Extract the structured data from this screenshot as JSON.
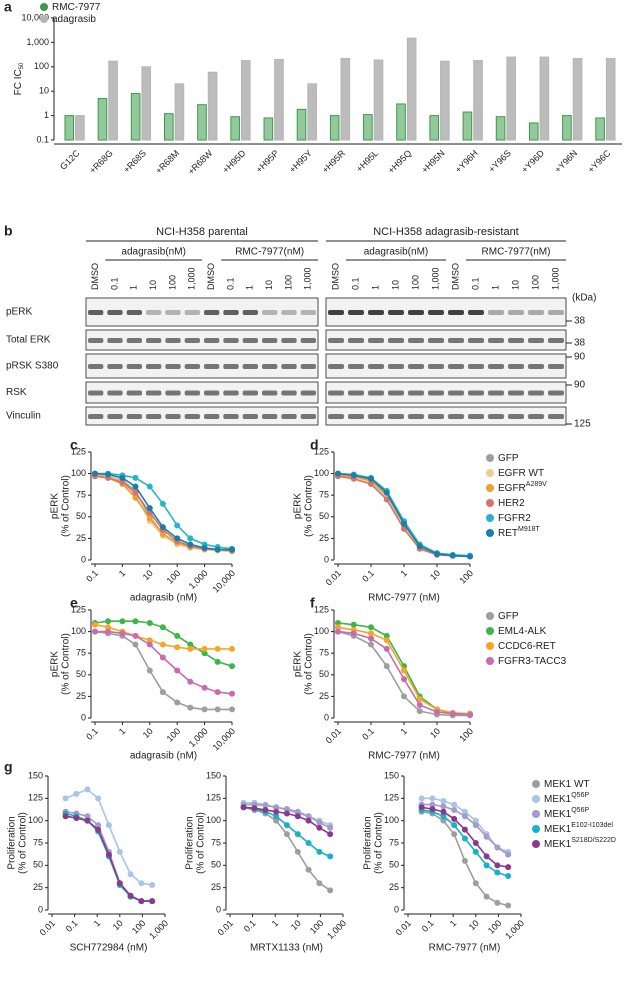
{
  "chart_data": [
    {
      "type": "bar",
      "panel": "a",
      "ylabel": "FC IC",
      "ylabel_sub": "50",
      "yscale": "log",
      "legend": "top-left",
      "categories": [
        "G12C",
        "+R68G",
        "+R68S",
        "+R68M",
        "+R68W",
        "+H95D",
        "+H95P",
        "+H95Y",
        "+H95R",
        "+H95L",
        "+H95Q",
        "+H95N",
        "+Y96H",
        "+Y96S",
        "+Y96D",
        "+Y96N",
        "+Y96C"
      ],
      "series": [
        {
          "name": "RMC-7977",
          "color": "#3a9a4a",
          "values": [
            1,
            5,
            8,
            1.2,
            2.8,
            0.9,
            0.8,
            1.8,
            1,
            1.1,
            3,
            1,
            1.4,
            0.9,
            0.5,
            1,
            0.8
          ]
        },
        {
          "name": "adagrasib",
          "color": "#b5b5b5",
          "values": [
            1,
            170,
            100,
            20,
            60,
            180,
            200,
            20,
            220,
            190,
            1500,
            170,
            180,
            250,
            250,
            220,
            220
          ]
        }
      ],
      "ylim": [
        0.1,
        10000
      ],
      "yticks": [
        0.1,
        1,
        10,
        100,
        {
          "value": 1000,
          "label": "1,000"
        },
        {
          "value": 10000,
          "label": "10,000"
        }
      ]
    },
    {
      "type": "line",
      "panel": "c",
      "ylabel": [
        "pERK",
        "(% of Control)"
      ],
      "xlabel": "adagrasib (nM)",
      "xscale": "log",
      "x": [
        0.1,
        0.3,
        1,
        3,
        10,
        30,
        100,
        300,
        1000,
        3000,
        10000
      ],
      "series": [
        {
          "color": "#9e9e9e",
          "values": [
            100,
            97,
            92,
            80,
            50,
            30,
            20,
            15,
            12,
            11,
            10
          ]
        },
        {
          "color": "#f5c98a",
          "values": [
            100,
            98,
            90,
            75,
            45,
            28,
            18,
            14,
            12,
            11,
            10
          ]
        },
        {
          "color": "#f0a030",
          "values": [
            98,
            95,
            88,
            72,
            48,
            30,
            20,
            15,
            13,
            12,
            11
          ]
        },
        {
          "color": "#d9736a",
          "values": [
            97,
            95,
            90,
            78,
            55,
            35,
            22,
            16,
            13,
            12,
            11
          ]
        },
        {
          "color": "#26b5c8",
          "values": [
            100,
            100,
            98,
            95,
            85,
            65,
            40,
            25,
            18,
            15,
            13
          ]
        },
        {
          "color": "#1a7fa8",
          "values": [
            100,
            99,
            95,
            85,
            60,
            38,
            25,
            18,
            14,
            12,
            12
          ]
        }
      ],
      "xlim": [
        0.1,
        10000
      ],
      "xticks": [
        0.1,
        1,
        10,
        100,
        {
          "value": 1000,
          "label": "1,000"
        },
        {
          "value": 10000,
          "label": "10,000"
        }
      ],
      "ylim": [
        0,
        125
      ],
      "yticks": [
        0,
        25,
        50,
        75,
        100,
        125
      ]
    },
    {
      "type": "line",
      "panel": "d",
      "ylabel": [
        "pERK",
        "(% of Control)"
      ],
      "xlabel": "RMC-7977 (nM)",
      "xscale": "log",
      "legend": "right",
      "x": [
        0.01,
        0.03,
        0.1,
        0.3,
        1,
        3,
        10,
        30,
        100
      ],
      "series": [
        {
          "name": "GFP",
          "color": "#9e9e9e",
          "values": [
            100,
            98,
            92,
            75,
            40,
            15,
            7,
            5,
            4
          ]
        },
        {
          "name": "EGFR WT",
          "color": "#f5c98a",
          "values": [
            100,
            97,
            90,
            72,
            38,
            14,
            7,
            5,
            4
          ]
        },
        {
          "name": "EGFR",
          "name_sup": "A289V",
          "color": "#f0a030",
          "values": [
            98,
            96,
            92,
            78,
            42,
            16,
            8,
            5,
            4
          ]
        },
        {
          "name": "HER2",
          "color": "#d9736a",
          "values": [
            97,
            94,
            88,
            70,
            36,
            13,
            6,
            5,
            4
          ]
        },
        {
          "name": "FGFR2",
          "color": "#26b5c8",
          "values": [
            100,
            99,
            95,
            80,
            45,
            18,
            8,
            6,
            5
          ]
        },
        {
          "name": "RET",
          "name_sup": "M918T",
          "color": "#1a7fa8",
          "values": [
            100,
            98,
            94,
            78,
            42,
            16,
            7,
            5,
            4
          ]
        }
      ],
      "xlim": [
        0.01,
        100
      ],
      "xticks": [
        0.01,
        0.1,
        1,
        10,
        100
      ],
      "ylim": [
        0,
        125
      ],
      "yticks": [
        0,
        25,
        50,
        75,
        100,
        125
      ]
    },
    {
      "type": "line",
      "panel": "e",
      "ylabel": [
        "pERK",
        "(% of Control)"
      ],
      "xlabel": "adagrasib (nM)",
      "xscale": "log",
      "x": [
        0.1,
        0.3,
        1,
        3,
        10,
        30,
        100,
        300,
        1000,
        3000,
        10000
      ],
      "series": [
        {
          "color": "#9e9e9e",
          "values": [
            100,
            98,
            95,
            85,
            55,
            30,
            18,
            12,
            10,
            10,
            10
          ]
        },
        {
          "color": "#3cb54a",
          "values": [
            110,
            112,
            112,
            112,
            110,
            105,
            95,
            85,
            75,
            65,
            60
          ]
        },
        {
          "color": "#f5a623",
          "values": [
            108,
            105,
            100,
            95,
            90,
            85,
            82,
            80,
            80,
            80,
            80
          ]
        },
        {
          "color": "#c86bb0",
          "values": [
            100,
            100,
            98,
            95,
            85,
            70,
            55,
            42,
            35,
            30,
            28
          ]
        }
      ],
      "xlim": [
        0.1,
        10000
      ],
      "xticks": [
        0.1,
        1,
        10,
        100,
        {
          "value": 1000,
          "label": "1,000"
        },
        {
          "value": 10000,
          "label": "10,000"
        }
      ],
      "ylim": [
        0,
        125
      ],
      "yticks": [
        0,
        25,
        50,
        75,
        100,
        125
      ]
    },
    {
      "type": "line",
      "panel": "f",
      "ylabel": [
        "pERK",
        "(% of Control)"
      ],
      "xlabel": "RMC-7977 (nM)",
      "xscale": "log",
      "legend": "right",
      "x": [
        0.01,
        0.03,
        0.1,
        0.3,
        1,
        3,
        10,
        30,
        100
      ],
      "series": [
        {
          "name": "GFP",
          "color": "#9e9e9e",
          "values": [
            100,
            95,
            85,
            60,
            25,
            8,
            4,
            3,
            3
          ]
        },
        {
          "name": "EML4-ALK",
          "color": "#3cb54a",
          "values": [
            110,
            108,
            105,
            95,
            60,
            25,
            10,
            5,
            4
          ]
        },
        {
          "name": "CCDC6-RET",
          "color": "#f5a623",
          "values": [
            105,
            102,
            98,
            90,
            55,
            22,
            10,
            6,
            5
          ]
        },
        {
          "name": "FGFR3-TACC3",
          "color": "#c86bb0",
          "values": [
            100,
            98,
            92,
            80,
            45,
            15,
            7,
            5,
            4
          ]
        }
      ],
      "xlim": [
        0.01,
        100
      ],
      "xticks": [
        0.01,
        0.1,
        1,
        10,
        100
      ],
      "ylim": [
        0,
        125
      ],
      "yticks": [
        0,
        25,
        50,
        75,
        100,
        125
      ]
    },
    {
      "type": "line",
      "panel": "g",
      "ylabel": [
        "Proliferation",
        "(% of Control)"
      ],
      "xlabel": "SCH772984 (nM)",
      "xscale": "log",
      "x": [
        0.04,
        0.12,
        0.37,
        1.1,
        3.3,
        10,
        30,
        90,
        270
      ],
      "series": [
        {
          "color": "#9e9e9e",
          "values": [
            105,
            103,
            100,
            90,
            60,
            30,
            15,
            10,
            10
          ]
        },
        {
          "color": "#a9c4e6",
          "values": [
            125,
            130,
            135,
            125,
            95,
            65,
            40,
            30,
            28
          ]
        },
        {
          "color": "#a39bc9",
          "values": [
            110,
            108,
            105,
            95,
            65,
            30,
            15,
            10,
            10
          ]
        },
        {
          "color": "#1ab0c8",
          "values": [
            108,
            105,
            100,
            88,
            60,
            28,
            15,
            10,
            10
          ]
        },
        {
          "color": "#8b3a8b",
          "values": [
            105,
            103,
            100,
            90,
            62,
            30,
            16,
            10,
            10
          ]
        }
      ],
      "xlim": [
        0.01,
        1000
      ],
      "xticks": [
        0.01,
        0.1,
        1,
        10,
        100,
        {
          "value": 1000,
          "label": "1,000"
        }
      ],
      "ylim": [
        0,
        150
      ],
      "yticks": [
        0,
        25,
        50,
        75,
        100,
        125,
        150
      ]
    },
    {
      "type": "line",
      "ylabel": [
        "Proliferation",
        "(% of Control)"
      ],
      "xlabel": "MRTX1133 (nM)",
      "xscale": "log",
      "x": [
        0.04,
        0.12,
        0.37,
        1.1,
        3.3,
        10,
        30,
        90,
        270
      ],
      "series": [
        {
          "color": "#9e9e9e",
          "values": [
            115,
            112,
            108,
            100,
            85,
            65,
            45,
            30,
            22
          ]
        },
        {
          "color": "#a9c4e6",
          "values": [
            120,
            120,
            118,
            115,
            112,
            108,
            105,
            100,
            95
          ]
        },
        {
          "color": "#a39bc9",
          "values": [
            118,
            118,
            117,
            115,
            113,
            110,
            105,
            98,
            92
          ]
        },
        {
          "color": "#1ab0c8",
          "values": [
            115,
            113,
            110,
            105,
            95,
            85,
            75,
            65,
            60
          ]
        },
        {
          "color": "#8b3a8b",
          "values": [
            115,
            114,
            112,
            110,
            108,
            105,
            100,
            92,
            85
          ]
        }
      ],
      "xlim": [
        0.01,
        1000
      ],
      "xticks": [
        0.01,
        0.1,
        1,
        10,
        100,
        {
          "value": 1000,
          "label": "1,000"
        }
      ],
      "ylim": [
        0,
        150
      ],
      "yticks": [
        0,
        25,
        50,
        75,
        100,
        125,
        150
      ]
    },
    {
      "type": "line",
      "ylabel": [
        "Proliferation",
        "(% of Control)"
      ],
      "xlabel": "RMC-7977 (nM)",
      "xscale": "log",
      "legend": "right",
      "x": [
        0.04,
        0.12,
        0.37,
        1.1,
        3.3,
        10,
        30,
        90,
        270
      ],
      "series": [
        {
          "name": "MEK1 WT",
          "color": "#9e9e9e",
          "values": [
            110,
            108,
            100,
            85,
            55,
            30,
            15,
            8,
            5
          ]
        },
        {
          "name": "MEK1",
          "name_sup": "Q56P",
          "color": "#a9c4e6",
          "values": [
            125,
            125,
            122,
            118,
            110,
            100,
            85,
            70,
            65
          ]
        },
        {
          "name": "MEK1",
          "name_sup": "Q56P",
          "color": "#a39bc9",
          "values": [
            118,
            118,
            116,
            112,
            105,
            95,
            82,
            70,
            62
          ]
        },
        {
          "name": "MEK1",
          "name_sup": "E102-I103del",
          "color": "#1ab0c8",
          "values": [
            112,
            110,
            105,
            95,
            80,
            65,
            50,
            42,
            38
          ]
        },
        {
          "name": "MEK1",
          "name_sup": "S218D/S222D",
          "color": "#8b3a8b",
          "values": [
            115,
            113,
            110,
            102,
            90,
            75,
            60,
            50,
            48
          ]
        }
      ],
      "xlim": [
        0.01,
        1000
      ],
      "xticks": [
        0.01,
        0.1,
        1,
        10,
        100,
        {
          "value": 1000,
          "label": "1,000"
        }
      ],
      "ylim": [
        0,
        150
      ],
      "yticks": [
        0,
        25,
        50,
        75,
        100,
        125,
        150
      ]
    }
  ],
  "blot": {
    "panel": "b",
    "groups": [
      "NCI-H358 parental",
      "NCI-H358 adagrasib-resistant"
    ],
    "treatments": [
      "adagrasib(nM)",
      "RMC-7977(nM)"
    ],
    "lanes": [
      "DMSO",
      "0.1",
      "1",
      "10",
      "100",
      "1,000"
    ],
    "rows": [
      "pERK",
      "Total ERK",
      "pRSK S380",
      "RSK",
      "Vinculin"
    ],
    "kda_title": "(kDa)",
    "kda": [
      "38",
      "38",
      "90",
      "90",
      "125"
    ]
  }
}
